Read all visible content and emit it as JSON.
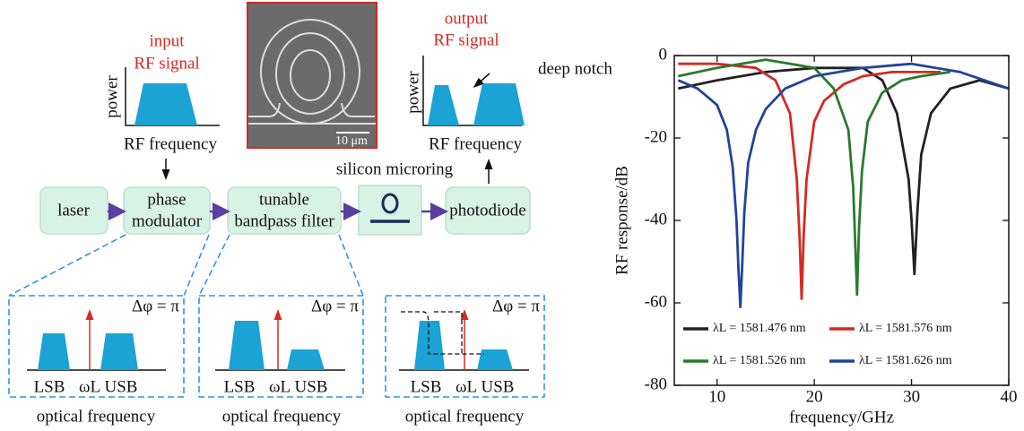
{
  "diagram": {
    "input_inset": {
      "title": [
        "input",
        "RF signal"
      ],
      "y_label": "power",
      "x_label": "RF frequency"
    },
    "micrograph": {
      "scale_bar": "10 μm"
    },
    "output_inset": {
      "title": [
        "output",
        "RF signal"
      ],
      "annotation": "deep notch",
      "y_label": "power",
      "x_label": "RF frequency"
    },
    "microring_label": "silicon microring",
    "nodes": [
      {
        "lines": [
          "laser"
        ]
      },
      {
        "lines": [
          "phase",
          "modulator"
        ]
      },
      {
        "lines": [
          "tunable",
          "bandpass filter"
        ]
      },
      {
        "lines": [
          "photodiode"
        ]
      }
    ],
    "panels": [
      {
        "phase": "Δφ = π",
        "labels": [
          "LSB",
          "ωL",
          "USB"
        ],
        "x_label": "optical frequency"
      },
      {
        "phase": "Δφ = π",
        "labels": [
          "LSB",
          "ωL",
          "USB"
        ],
        "x_label": "optical frequency"
      },
      {
        "phase": "Δφ = π",
        "labels": [
          "LSB",
          "ωL",
          "USB"
        ],
        "x_label": "optical frequency"
      }
    ]
  },
  "chart_data": {
    "type": "line",
    "x_label": "frequency/GHz",
    "y_label": "RF response/dB",
    "xlim": [
      5.6,
      40
    ],
    "xticks": [
      10,
      20,
      30,
      40
    ],
    "ylim": [
      -80,
      0
    ],
    "yticks": [
      -80,
      -60,
      -40,
      -20,
      0
    ],
    "series": [
      {
        "name": "λL = 1581.476 nm",
        "color": "#222222",
        "x": [
          6,
          10,
          15,
          20,
          25,
          27,
          28.5,
          29.7,
          30,
          30.3,
          30.6,
          31,
          32,
          34,
          37,
          40
        ],
        "values": [
          -8,
          -6,
          -4,
          -3,
          -3,
          -6,
          -14,
          -30,
          -40,
          -53,
          -38,
          -24,
          -14,
          -8,
          -6,
          -8
        ]
      },
      {
        "name": "λL = 1581.576 nm",
        "color": "#d42a22",
        "x": [
          6,
          10,
          14,
          16,
          17.5,
          18.2,
          18.5,
          18.7,
          18.9,
          19.2,
          20,
          21,
          23,
          25,
          28,
          30,
          33
        ],
        "values": [
          -2,
          -2,
          -3,
          -6,
          -14,
          -30,
          -45,
          -59,
          -44,
          -30,
          -16,
          -11,
          -7,
          -5,
          -4,
          -4,
          -4
        ]
      },
      {
        "name": "λL = 1581.526 nm",
        "color": "#2a7a2e",
        "x": [
          6,
          10,
          15,
          20,
          22,
          23.5,
          24,
          24.2,
          24.4,
          24.6,
          24.9,
          25.5,
          27,
          29,
          31,
          34
        ],
        "values": [
          -5,
          -3,
          -1,
          -3,
          -8,
          -18,
          -32,
          -45,
          -58,
          -42,
          -28,
          -16,
          -9,
          -6,
          -5,
          -4
        ]
      },
      {
        "name": "λL = 1581.626 nm",
        "color": "#22449a",
        "x": [
          6,
          8,
          10,
          11,
          11.6,
          12,
          12.2,
          12.4,
          12.6,
          12.8,
          13.2,
          14,
          15,
          17,
          20,
          25,
          30,
          35,
          40
        ],
        "values": [
          -6,
          -8,
          -12,
          -18,
          -27,
          -40,
          -52,
          -61,
          -50,
          -38,
          -26,
          -18,
          -13,
          -8,
          -5,
          -3,
          -2,
          -4,
          -8
        ]
      }
    ]
  }
}
